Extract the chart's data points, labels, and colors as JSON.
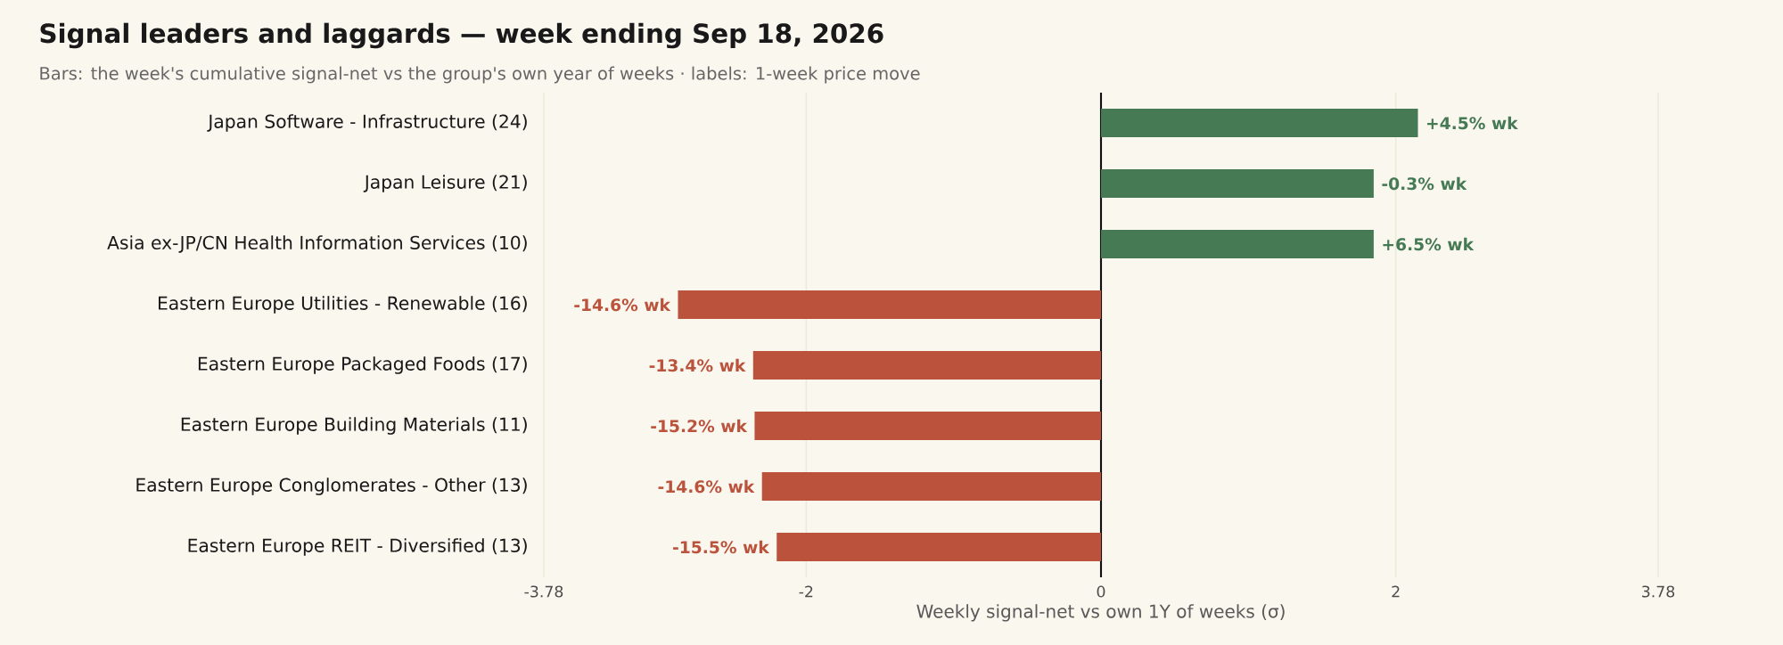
{
  "chart_data": {
    "type": "bar",
    "orientation": "horizontal",
    "title": "Signal leaders and laggards — week ending Sep 18, 2026",
    "subtitle": "Bars: the week's cumulative signal-net vs the group's own year of weeks · labels: 1-week price move",
    "xlabel": "Weekly signal-net vs own 1Y of weeks (σ)",
    "categories": [
      "Japan Software - Infrastructure (24)",
      "Japan Leisure (21)",
      "Asia ex-JP/CN Health Information Services (10)",
      "Eastern Europe Utilities - Renewable (16)",
      "Eastern Europe Packaged Foods (17)",
      "Eastern Europe Building Materials (11)",
      "Eastern Europe Conglomerates - Other (13)",
      "Eastern Europe REIT - Diversified (13)"
    ],
    "values": [
      2.15,
      1.85,
      1.85,
      -2.87,
      -2.36,
      -2.35,
      -2.3,
      -2.2
    ],
    "colors": [
      "#467a55",
      "#467a55",
      "#467a55",
      "#bb533c",
      "#bb533c",
      "#bb533c",
      "#bb533c",
      "#bb533c"
    ],
    "annotations": [
      {
        "text": "+4.5% wk",
        "x": 2.15,
        "y": "Japan Software - Infrastructure (24)"
      },
      {
        "text": "-0.3% wk",
        "x": 1.85,
        "y": "Japan Leisure (21)"
      },
      {
        "text": "+6.5% wk",
        "x": 1.85,
        "y": "Asia ex-JP/CN Health Information Services (10)"
      },
      {
        "text": "-14.6% wk",
        "x": -2.87,
        "y": "Eastern Europe Utilities - Renewable (16)"
      },
      {
        "text": "-13.4% wk",
        "x": -2.36,
        "y": "Eastern Europe Packaged Foods (17)"
      },
      {
        "text": "-15.2% wk",
        "x": -2.35,
        "y": "Eastern Europe Building Materials (11)"
      },
      {
        "text": "-14.6% wk",
        "x": -2.3,
        "y": "Eastern Europe Conglomerates - Other (13)"
      },
      {
        "text": "-15.5% wk",
        "x": -2.2,
        "y": "Eastern Europe REIT - Diversified (13)"
      }
    ],
    "xlim": [
      -3.78,
      3.78
    ],
    "xticks": [
      -3.78,
      -2,
      0,
      2,
      3.78
    ],
    "grid": "x",
    "ref_lines": [
      {
        "axis": "x",
        "value": 0,
        "color": "#111111"
      }
    ]
  }
}
